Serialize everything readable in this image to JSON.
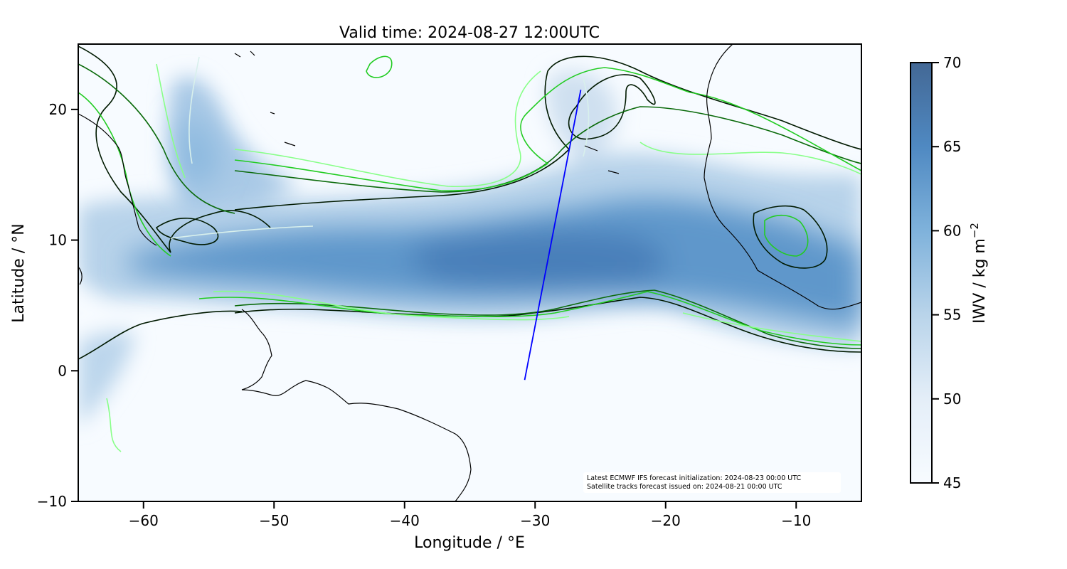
{
  "title": "Valid time: 2024-08-27 12:00UTC",
  "map": {
    "xlabel": "Longitude / °E",
    "ylabel": "Latitude / °N",
    "lon_range": [
      -65,
      -5
    ],
    "lat_range": [
      -10,
      25
    ],
    "x_ticks": [
      -60,
      -50,
      -40,
      -30,
      -20,
      -10
    ],
    "x_tick_labels": [
      "−60",
      "−50",
      "−40",
      "−30",
      "−20",
      "−10"
    ],
    "y_ticks": [
      -10,
      0,
      10,
      20
    ],
    "y_tick_labels": [
      "−10",
      "0",
      "10",
      "20"
    ],
    "satellite_track": {
      "color": "#0000ff",
      "points": [
        [
          -30.8,
          -0.7
        ],
        [
          -26.5,
          21.5
        ]
      ]
    },
    "field_colors": {
      "low": "#f7fbff",
      "high": "#2f5f95"
    },
    "contour_colors": [
      "#003300",
      "#0a6a0a",
      "#22cc22",
      "#88ff88",
      "#d8f0ec"
    ]
  },
  "colorbar": {
    "label": "IWV / kg m",
    "label_exponent": "−2",
    "range": [
      45,
      70
    ],
    "ticks": [
      45,
      50,
      55,
      60,
      65,
      70
    ],
    "tick_labels": [
      "45",
      "50",
      "55",
      "60",
      "65",
      "70"
    ]
  },
  "annotation": {
    "line1": "Latest ECMWF IFS forecast initialization: 2024-08-23 00:00 UTC",
    "line2": "Satellite tracks forecast issued on: 2024-08-21 00:00 UTC"
  }
}
